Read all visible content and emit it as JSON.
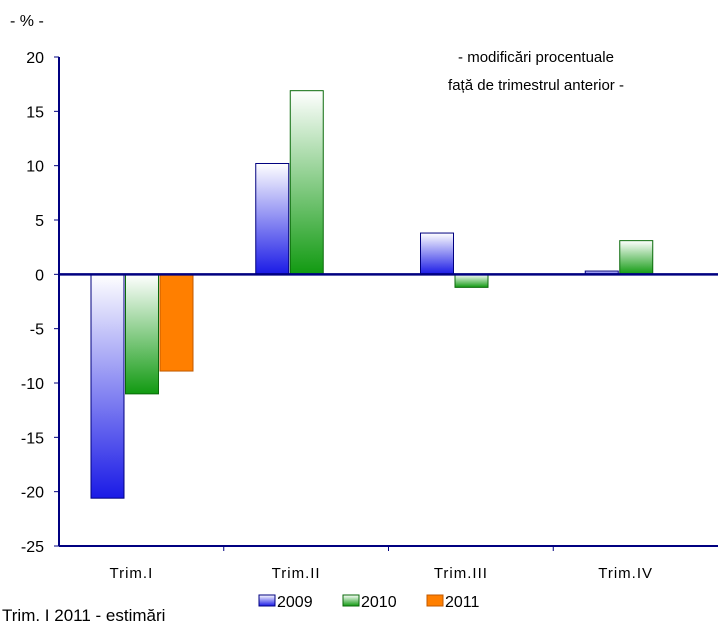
{
  "chart_data": {
    "type": "bar",
    "unit_label": "- % -",
    "annotation": [
      "- modificări procentuale",
      "față de trimestrul anterior -"
    ],
    "categories": [
      "Trim.I",
      "Trim.II",
      "Trim.III",
      "Trim.IV"
    ],
    "series": [
      {
        "name": "2009",
        "values": [
          -20.6,
          10.2,
          3.8,
          0.3
        ]
      },
      {
        "name": "2010",
        "values": [
          -11.0,
          16.9,
          -1.2,
          3.1
        ]
      },
      {
        "name": "2011",
        "values": [
          -8.9,
          null,
          null,
          null
        ]
      }
    ],
    "ylim": [
      -25,
      20
    ],
    "yticks": [
      20,
      15,
      10,
      5,
      0,
      -5,
      -10,
      -15,
      -20,
      -25
    ],
    "grid": false,
    "legend_position": "bottom",
    "colors": {
      "2009": "#1a1ae6",
      "2010": "#119a11",
      "2011": "#ff7f00",
      "axis": "#000080"
    },
    "footnote": "Trim. I 2011 - estimări"
  }
}
